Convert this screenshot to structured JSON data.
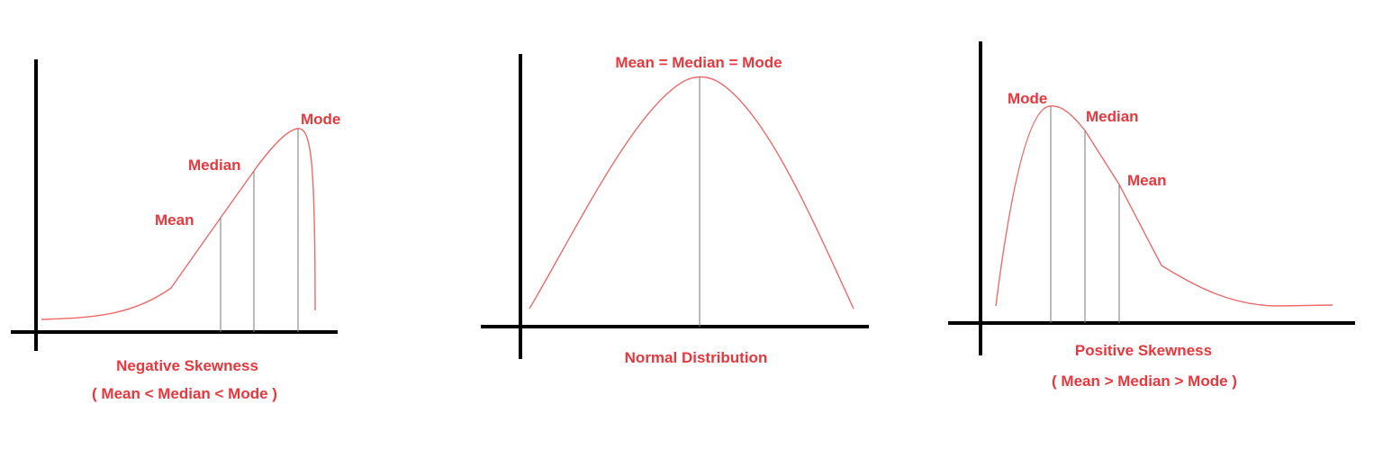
{
  "colors": {
    "text": "#e8383d",
    "curve": "#f06b6b",
    "axis": "#000000",
    "marker": "#7a7a7a"
  },
  "panels": [
    {
      "id": "negative",
      "markers": {
        "mean": "Mean",
        "median": "Median",
        "mode": "Mode"
      },
      "caption": "Negative Skewness",
      "relation": "( Mean < Median < Mode )"
    },
    {
      "id": "normal",
      "markers": {
        "combined": "Mean = Median = Mode"
      },
      "caption": "Normal Distribution"
    },
    {
      "id": "positive",
      "markers": {
        "mode": "Mode",
        "median": "Median",
        "mean": "Mean"
      },
      "caption": "Positive Skewness",
      "relation": "( Mean > Median > Mode )"
    }
  ]
}
